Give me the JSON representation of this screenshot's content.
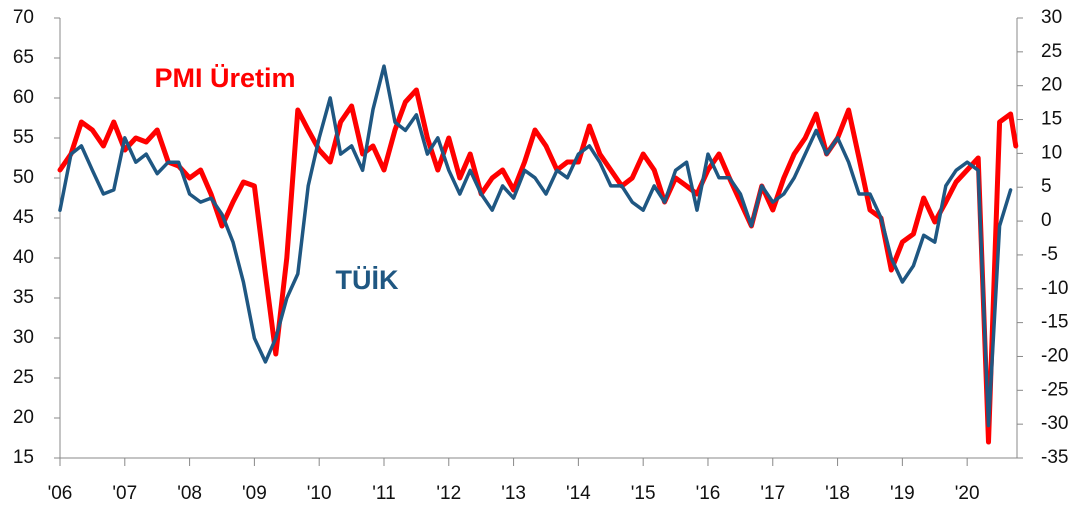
{
  "chart_data": {
    "type": "line",
    "x": [
      2006,
      2006.17,
      2006.33,
      2006.5,
      2006.67,
      2006.83,
      2007,
      2007.17,
      2007.33,
      2007.5,
      2007.67,
      2007.83,
      2008,
      2008.17,
      2008.33,
      2008.5,
      2008.67,
      2008.83,
      2009,
      2009.17,
      2009.33,
      2009.5,
      2009.67,
      2009.83,
      2010,
      2010.17,
      2010.33,
      2010.5,
      2010.67,
      2010.83,
      2011,
      2011.17,
      2011.33,
      2011.5,
      2011.67,
      2011.83,
      2012,
      2012.17,
      2012.33,
      2012.5,
      2012.67,
      2012.83,
      2013,
      2013.17,
      2013.33,
      2013.5,
      2013.67,
      2013.83,
      2014,
      2014.17,
      2014.33,
      2014.5,
      2014.67,
      2014.83,
      2015,
      2015.17,
      2015.33,
      2015.5,
      2015.67,
      2015.83,
      2016,
      2016.17,
      2016.33,
      2016.5,
      2016.67,
      2016.83,
      2017,
      2017.17,
      2017.33,
      2017.5,
      2017.67,
      2017.83,
      2018,
      2018.17,
      2018.33,
      2018.5,
      2018.67,
      2018.83,
      2019,
      2019.17,
      2019.33,
      2019.5,
      2019.67,
      2019.83,
      2020,
      2020.17,
      2020.33,
      2020.5,
      2020.67,
      2020.75
    ],
    "series": [
      {
        "name": "PMI Üretim",
        "color": "#ff0000",
        "values": [
          51,
          53,
          57,
          56,
          54,
          57,
          53.5,
          55,
          54.5,
          56,
          52,
          51.5,
          50,
          51,
          48,
          44,
          47,
          49.5,
          49,
          38,
          28,
          40,
          58.5,
          56,
          53.5,
          52,
          57,
          59,
          53,
          54,
          51,
          56,
          59.5,
          61,
          55,
          51,
          55,
          50,
          53,
          48,
          50,
          51,
          48.5,
          52,
          56,
          54,
          51,
          52,
          52,
          56.5,
          53,
          51,
          49,
          50,
          53,
          51,
          47,
          50,
          49,
          48,
          51,
          53,
          50,
          47,
          44,
          49,
          46,
          50,
          53,
          55,
          58,
          53,
          55,
          58.5,
          52.5,
          46,
          45,
          38.5,
          42,
          43,
          47.5,
          44.5,
          47,
          49.5,
          51,
          52.5,
          17,
          57,
          58,
          54
        ]
      },
      {
        "name": "TÜİK",
        "color": "#1f5782",
        "axis": "y2",
        "values": [
          1.6,
          9.9,
          11.1,
          7.5,
          4.0,
          4.6,
          12.3,
          8.7,
          9.9,
          7.0,
          8.7,
          8.7,
          4.0,
          2.8,
          3.4,
          1.0,
          -3.1,
          -9.0,
          -17.3,
          -20.8,
          -17.3,
          -11.4,
          -7.8,
          5.2,
          12.3,
          18.2,
          9.9,
          11.1,
          7.5,
          16.5,
          22.9,
          14.6,
          13.4,
          15.7,
          9.9,
          12.3,
          7.5,
          4.0,
          7.5,
          4.0,
          1.6,
          5.2,
          3.4,
          7.5,
          6.4,
          4.0,
          7.5,
          6.4,
          9.9,
          11.1,
          8.7,
          5.2,
          5.2,
          2.8,
          1.6,
          5.2,
          2.8,
          7.5,
          8.7,
          1.6,
          9.9,
          6.4,
          6.4,
          4.0,
          -0.7,
          5.2,
          2.8,
          4.0,
          6.4,
          9.9,
          13.4,
          9.9,
          12.3,
          8.7,
          4.0,
          4.0,
          0.5,
          -5.5,
          -9.0,
          -6.6,
          -2.1,
          -3.1,
          5.2,
          7.5,
          8.7,
          7.5,
          -30.2,
          -0.7,
          4.6,
          null
        ]
      }
    ],
    "xlim": [
      2006,
      2020.8
    ],
    "xticks": [
      {
        "value": 2006,
        "label": "'06"
      },
      {
        "value": 2007,
        "label": "'07"
      },
      {
        "value": 2008,
        "label": "'08"
      },
      {
        "value": 2009,
        "label": "'09"
      },
      {
        "value": 2010,
        "label": "'10"
      },
      {
        "value": 2011,
        "label": "'11"
      },
      {
        "value": 2012,
        "label": "'12"
      },
      {
        "value": 2013,
        "label": "'13"
      },
      {
        "value": 2014,
        "label": "'14"
      },
      {
        "value": 2015,
        "label": "'15"
      },
      {
        "value": 2016,
        "label": "'16"
      },
      {
        "value": 2017,
        "label": "'17"
      },
      {
        "value": 2018,
        "label": "'18"
      },
      {
        "value": 2019,
        "label": "'19"
      },
      {
        "value": 2020,
        "label": "'20"
      }
    ],
    "ylim": [
      15,
      70
    ],
    "yticks": [
      15,
      20,
      25,
      30,
      35,
      40,
      45,
      50,
      55,
      60,
      65,
      70
    ],
    "y2lim": [
      -35,
      30
    ],
    "y2ticks": [
      -35,
      -30,
      -25,
      -20,
      -15,
      -10,
      -5,
      0,
      5,
      10,
      15,
      20,
      25,
      30
    ]
  }
}
